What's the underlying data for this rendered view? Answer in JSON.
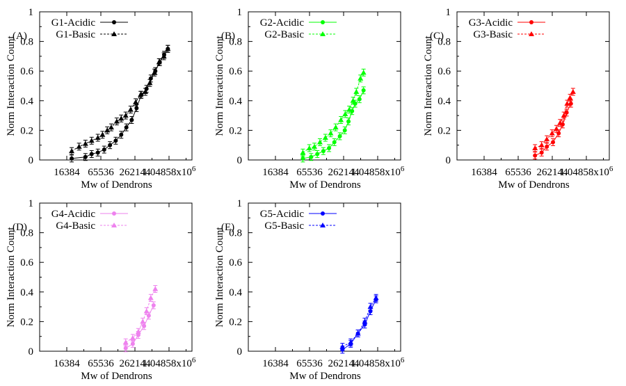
{
  "chart_data": [
    {
      "type": "line",
      "panel_label": "(A)",
      "xlabel": "Mw of Dendrons",
      "ylabel": "Norm Interaction Count",
      "x_scale": "log",
      "x_ticks": [
        "16384",
        "65536",
        "262144",
        "1.04858x10^6"
      ],
      "x_tick_values": [
        16384,
        65536,
        262144,
        1048576
      ],
      "y_ticks": [
        "0",
        "0.2",
        "0.4",
        "0.6",
        "0.8",
        "1"
      ],
      "ylim": [
        0,
        1
      ],
      "legend_position": "top-left",
      "color": "#000000",
      "series": [
        {
          "name": "G1-Acidic",
          "marker": "circle",
          "dash": "solid",
          "x": [
            20000,
            35000,
            45000,
            58000,
            75000,
            95000,
            120000,
            150000,
            185000,
            230000,
            280000,
            340000,
            420000,
            500000,
            600000,
            720000,
            860000,
            1000000
          ],
          "y": [
            0.01,
            0.02,
            0.04,
            0.05,
            0.07,
            0.1,
            0.13,
            0.17,
            0.22,
            0.27,
            0.35,
            0.44,
            0.48,
            0.55,
            0.6,
            0.66,
            0.71,
            0.75
          ]
        },
        {
          "name": "G1-Basic",
          "marker": "triangle",
          "dash": "dashed",
          "x": [
            20000,
            27000,
            35000,
            45000,
            58000,
            70000,
            85000,
            100000,
            125000,
            150000,
            180000,
            220000,
            270000,
            330000,
            400000,
            480000,
            580000,
            700000,
            850000,
            1000000
          ],
          "y": [
            0.06,
            0.09,
            0.11,
            0.13,
            0.15,
            0.17,
            0.2,
            0.22,
            0.26,
            0.28,
            0.3,
            0.34,
            0.39,
            0.44,
            0.46,
            0.52,
            0.59,
            0.66,
            0.7,
            0.75
          ]
        }
      ]
    },
    {
      "type": "line",
      "panel_label": "(B)",
      "xlabel": "Mw of Dendrons",
      "ylabel": "Norm Interaction Count",
      "x_scale": "log",
      "x_ticks": [
        "16384",
        "65536",
        "262144",
        "1.04858x10^6"
      ],
      "x_tick_values": [
        16384,
        65536,
        262144,
        1048576
      ],
      "y_ticks": [
        "0",
        "0.2",
        "0.4",
        "0.6",
        "0.8",
        "1"
      ],
      "ylim": [
        0,
        1
      ],
      "legend_position": "top-left",
      "color": "#00ff00",
      "series": [
        {
          "name": "G2-Acidic",
          "marker": "circle",
          "dash": "solid",
          "x": [
            50000,
            70000,
            90000,
            115000,
            145000,
            180000,
            225000,
            275000,
            320000,
            370000,
            420000,
            500000,
            590000
          ],
          "y": [
            0.01,
            0.02,
            0.04,
            0.06,
            0.08,
            0.12,
            0.16,
            0.2,
            0.26,
            0.33,
            0.38,
            0.41,
            0.47
          ]
        },
        {
          "name": "G2-Basic",
          "marker": "triangle",
          "dash": "dashed",
          "x": [
            50000,
            65000,
            80000,
            100000,
            125000,
            155000,
            190000,
            235000,
            280000,
            330000,
            385000,
            440000,
            520000,
            590000
          ],
          "y": [
            0.05,
            0.08,
            0.09,
            0.12,
            0.15,
            0.18,
            0.22,
            0.27,
            0.31,
            0.34,
            0.4,
            0.46,
            0.55,
            0.59
          ]
        }
      ]
    },
    {
      "type": "line",
      "panel_label": "(C)",
      "xlabel": "Mw of Dendrons",
      "ylabel": "Norm Interaction Count",
      "x_scale": "log",
      "x_ticks": [
        "16384",
        "65536",
        "262144",
        "1.04858x10^6"
      ],
      "x_tick_values": [
        16384,
        65536,
        262144,
        1048576
      ],
      "y_ticks": [
        "0",
        "0.2",
        "0.4",
        "0.6",
        "0.8",
        "1"
      ],
      "ylim": [
        0,
        1
      ],
      "legend_position": "top-left",
      "color": "#ff0000",
      "series": [
        {
          "name": "G3-Acidic",
          "marker": "circle",
          "dash": "solid",
          "x": [
            130000,
            170000,
            210000,
            270000,
            340000,
            400000,
            470000,
            560000
          ],
          "y": [
            0.03,
            0.05,
            0.09,
            0.12,
            0.18,
            0.24,
            0.32,
            0.38
          ]
        },
        {
          "name": "G3-Basic",
          "marker": "triangle",
          "dash": "dashed",
          "x": [
            130000,
            170000,
            210000,
            260000,
            310000,
            360000,
            420000,
            480000,
            540000,
            610000
          ],
          "y": [
            0.08,
            0.1,
            0.14,
            0.18,
            0.21,
            0.25,
            0.3,
            0.38,
            0.42,
            0.46
          ]
        }
      ]
    },
    {
      "type": "line",
      "panel_label": "(D)",
      "xlabel": "Mw of Dendrons",
      "ylabel": "Norm Interaction Count",
      "x_scale": "log",
      "x_ticks": [
        "16384",
        "65536",
        "262144",
        "1.04858x10^6"
      ],
      "x_tick_values": [
        16384,
        65536,
        262144,
        1048576
      ],
      "y_ticks": [
        "0",
        "0.2",
        "0.4",
        "0.6",
        "0.8",
        "1"
      ],
      "ylim": [
        0,
        1
      ],
      "legend_position": "top-left",
      "color": "#ee82ee",
      "series": [
        {
          "name": "G4-Acidic",
          "marker": "circle",
          "dash": "solid",
          "x": [
            180000,
            240000,
            300000,
            380000,
            460000,
            560000
          ],
          "y": [
            0.02,
            0.05,
            0.11,
            0.17,
            0.24,
            0.31
          ]
        },
        {
          "name": "G4-Basic",
          "marker": "triangle",
          "dash": "dashed",
          "x": [
            180000,
            240000,
            300000,
            360000,
            420000,
            500000,
            600000
          ],
          "y": [
            0.06,
            0.09,
            0.13,
            0.2,
            0.27,
            0.36,
            0.42
          ]
        }
      ]
    },
    {
      "type": "line",
      "panel_label": "(E)",
      "xlabel": "Mw of Dendrons",
      "ylabel": "Norm Interaction Count",
      "x_scale": "log",
      "x_ticks": [
        "16384",
        "65536",
        "262144",
        "1.04858x10^6"
      ],
      "x_tick_values": [
        16384,
        65536,
        262144,
        1048576
      ],
      "y_ticks": [
        "0",
        "0.2",
        "0.4",
        "0.6",
        "0.8",
        "1"
      ],
      "ylim": [
        0,
        1
      ],
      "legend_position": "top-left",
      "color": "#0000ff",
      "series": [
        {
          "name": "G5-Acidic",
          "marker": "circle",
          "dash": "solid",
          "x": [
            250000,
            350000,
            470000,
            620000,
            780000,
            980000
          ],
          "y": [
            0.01,
            0.05,
            0.12,
            0.18,
            0.27,
            0.35
          ]
        },
        {
          "name": "G5-Basic",
          "marker": "triangle",
          "dash": "dashed",
          "x": [
            250000,
            350000,
            470000,
            620000,
            780000,
            980000
          ],
          "y": [
            0.03,
            0.06,
            0.12,
            0.2,
            0.3,
            0.36
          ]
        }
      ]
    }
  ]
}
